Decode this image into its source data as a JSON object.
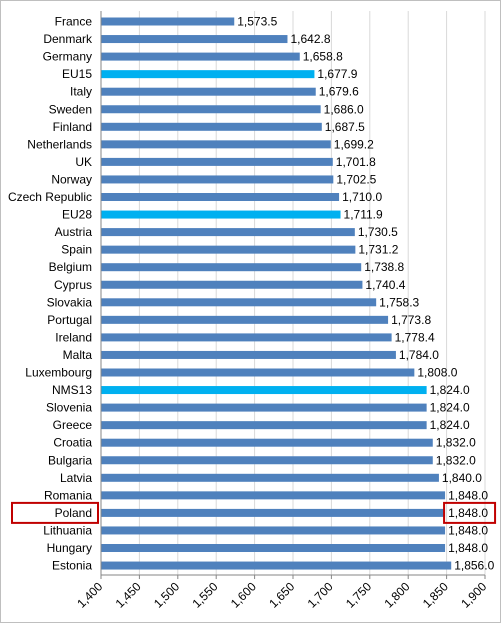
{
  "chart_data": {
    "type": "bar",
    "orientation": "horizontal",
    "categories": [
      "France",
      "Denmark",
      "Germany",
      "EU15",
      "Italy",
      "Sweden",
      "Finland",
      "Netherlands",
      "UK",
      "Norway",
      "Czech Republic",
      "EU28",
      "Austria",
      "Spain",
      "Belgium",
      "Cyprus",
      "Slovakia",
      "Portugal",
      "Ireland",
      "Malta",
      "Luxembourg",
      "NMS13",
      "Slovenia",
      "Greece",
      "Croatia",
      "Bulgaria",
      "Latvia",
      "Romania",
      "Poland",
      "Lithuania",
      "Hungary",
      "Estonia"
    ],
    "values": [
      1573.5,
      1642.8,
      1658.8,
      1677.9,
      1679.6,
      1686.0,
      1687.5,
      1699.2,
      1701.8,
      1702.5,
      1710.0,
      1711.9,
      1730.5,
      1731.2,
      1738.8,
      1740.4,
      1758.3,
      1773.8,
      1778.4,
      1784.0,
      1808.0,
      1824.0,
      1824.0,
      1824.0,
      1832.0,
      1832.0,
      1840.0,
      1848.0,
      1848.0,
      1848.0,
      1848.0,
      1856.0
    ],
    "value_labels": [
      "1,573.5",
      "1,642.8",
      "1,658.8",
      "1,677.9",
      "1,679.6",
      "1,686.0",
      "1,687.5",
      "1,699.2",
      "1,701.8",
      "1,702.5",
      "1,710.0",
      "1,711.9",
      "1,730.5",
      "1,731.2",
      "1,738.8",
      "1,740.4",
      "1,758.3",
      "1,773.8",
      "1,778.4",
      "1,784.0",
      "1,808.0",
      "1,824.0",
      "1,824.0",
      "1,824.0",
      "1,832.0",
      "1,832.0",
      "1,840.0",
      "1,848.0",
      "1,848.0",
      "1,848.0",
      "1,848.0",
      "1,856.0"
    ],
    "highlighted_categories": [
      "EU15",
      "EU28",
      "NMS13"
    ],
    "boxed_category": "Poland",
    "xlim": [
      1400,
      1900
    ],
    "x_ticks": [
      1400,
      1450,
      1500,
      1550,
      1600,
      1650,
      1700,
      1750,
      1800,
      1850,
      1900
    ],
    "x_tick_labels": [
      "1,400",
      "1,450",
      "1,500",
      "1,550",
      "1,600",
      "1,650",
      "1,700",
      "1,750",
      "1,800",
      "1,850",
      "1,900"
    ],
    "title": "",
    "xlabel": "",
    "ylabel": "",
    "grid": "vertical",
    "legend": "none",
    "colors": {
      "bar": "#4f81bd",
      "bar_highlight": "#00b0f0",
      "grid": "#d9d9d9",
      "axis": "#868686",
      "box": "#c00000"
    }
  }
}
